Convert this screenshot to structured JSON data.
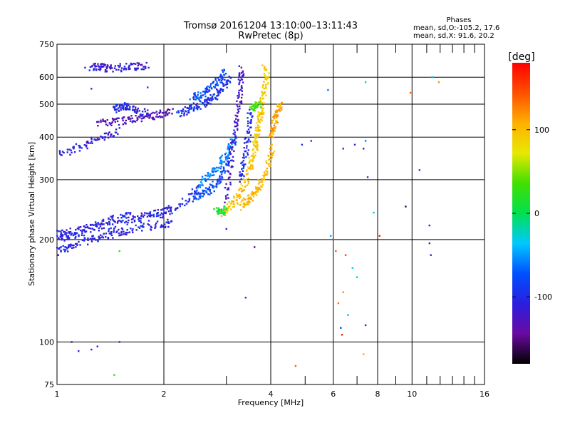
{
  "chart_data": {
    "type": "scatter",
    "title": "Tromsø 20161204 13:10:00–13:11:43",
    "subtitle": "RwPretec (8p)",
    "stats": {
      "heading": "Phases",
      "line1": "mean, sd,O:-105.2, 17.6",
      "line2": "mean, sd,X:  91.6, 20.2"
    },
    "xlabel": "Frequency [MHz]",
    "ylabel": "Stationary phase Virtual Height [km]",
    "x_scale": "log",
    "y_scale": "log",
    "xlim": [
      1,
      16
    ],
    "ylim": [
      75,
      750
    ],
    "x_ticks": [
      1,
      2,
      4,
      6,
      8,
      10,
      16
    ],
    "x_minor_ticks": [
      3,
      5,
      7,
      9,
      11,
      12,
      13,
      14,
      15
    ],
    "y_ticks": [
      75,
      100,
      200,
      300,
      400,
      500,
      600,
      750
    ],
    "grid": true,
    "colorbar": {
      "label": "[deg]",
      "range": [
        -180,
        180
      ],
      "ticks": [
        -100,
        0,
        100
      ],
      "colors": [
        "#000000",
        "#6a0aa0",
        "#2a1ee0",
        "#0050ff",
        "#00c8ff",
        "#00e050",
        "#40e000",
        "#e8e800",
        "#ffb000",
        "#ff5000",
        "#ff0000"
      ]
    },
    "traces": [
      {
        "name": "",
        "phase": -110,
        "points": [
          [
            1.0,
            210
          ],
          [
            1.05,
            208
          ],
          [
            1.1,
            210
          ],
          [
            1.2,
            215
          ],
          [
            1.3,
            220
          ],
          [
            1.4,
            228
          ],
          [
            1.5,
            232
          ],
          [
            1.6,
            235
          ],
          [
            1.8,
            238
          ],
          [
            2.0,
            242
          ],
          [
            2.1,
            248
          ]
        ]
      },
      {
        "name": "",
        "phase": -105,
        "points": [
          [
            1.0,
            183
          ],
          [
            1.05,
            188
          ],
          [
            1.1,
            192
          ],
          [
            1.2,
            198
          ],
          [
            1.3,
            202
          ],
          [
            1.4,
            206
          ],
          [
            1.5,
            210
          ],
          [
            1.6,
            213
          ],
          [
            1.8,
            218
          ],
          [
            2.0,
            222
          ],
          [
            2.1,
            225
          ]
        ]
      },
      {
        "name": "",
        "phase": -100,
        "points": [
          [
            1.0,
            200
          ],
          [
            1.1,
            205
          ],
          [
            1.2,
            212
          ],
          [
            1.4,
            220
          ],
          [
            1.6,
            226
          ],
          [
            1.8,
            232
          ],
          [
            2.0,
            238
          ],
          [
            2.2,
            250
          ],
          [
            2.4,
            270
          ],
          [
            2.5,
            285
          ]
        ]
      },
      {
        "name": "",
        "phase": -80,
        "points": [
          [
            2.4,
            265
          ],
          [
            2.5,
            270
          ],
          [
            2.6,
            275
          ],
          [
            2.7,
            280
          ],
          [
            2.8,
            290
          ],
          [
            2.9,
            305
          ],
          [
            3.0,
            330
          ],
          [
            3.05,
            350
          ]
        ]
      },
      {
        "name": "",
        "phase": -60,
        "points": [
          [
            2.5,
            290
          ],
          [
            2.6,
            300
          ],
          [
            2.7,
            310
          ],
          [
            2.8,
            320
          ],
          [
            2.9,
            340
          ],
          [
            3.0,
            360
          ],
          [
            3.1,
            380
          ],
          [
            3.2,
            400
          ]
        ]
      },
      {
        "name": "",
        "phase": -120,
        "points": [
          [
            3.0,
            260
          ],
          [
            3.05,
            300
          ],
          [
            3.1,
            350
          ],
          [
            3.15,
            400
          ],
          [
            3.2,
            450
          ],
          [
            3.25,
            500
          ],
          [
            3.3,
            550
          ],
          [
            3.3,
            600
          ],
          [
            3.3,
            640
          ]
        ]
      },
      {
        "name": "",
        "phase": -100,
        "points": [
          [
            3.3,
            300
          ],
          [
            3.35,
            330
          ],
          [
            3.4,
            360
          ],
          [
            3.45,
            400
          ],
          [
            3.5,
            440
          ],
          [
            3.5,
            480
          ]
        ]
      },
      {
        "name": "",
        "phase": -110,
        "points": [
          [
            1.0,
            355
          ],
          [
            1.1,
            365
          ],
          [
            1.2,
            380
          ],
          [
            1.3,
            395
          ],
          [
            1.4,
            405
          ],
          [
            1.5,
            418
          ]
        ]
      },
      {
        "name": "",
        "phase": -130,
        "points": [
          [
            1.3,
            440
          ],
          [
            1.4,
            443
          ],
          [
            1.5,
            446
          ],
          [
            1.6,
            450
          ],
          [
            1.7,
            455
          ],
          [
            1.8,
            460
          ],
          [
            1.9,
            465
          ],
          [
            2.0,
            470
          ],
          [
            2.1,
            478
          ]
        ]
      },
      {
        "name": "",
        "phase": -105,
        "points": [
          [
            1.45,
            480
          ],
          [
            1.5,
            490
          ],
          [
            1.55,
            495
          ],
          [
            1.6,
            488
          ],
          [
            1.7,
            478
          ],
          [
            1.8,
            470
          ]
        ]
      },
      {
        "name": "",
        "phase": -95,
        "points": [
          [
            2.2,
            470
          ],
          [
            2.3,
            478
          ],
          [
            2.4,
            488
          ],
          [
            2.5,
            495
          ],
          [
            2.6,
            505
          ],
          [
            2.7,
            515
          ],
          [
            2.8,
            530
          ],
          [
            2.9,
            550
          ],
          [
            3.0,
            575
          ],
          [
            3.05,
            600
          ]
        ]
      },
      {
        "name": "",
        "phase": -80,
        "points": [
          [
            2.4,
            520
          ],
          [
            2.5,
            530
          ],
          [
            2.6,
            540
          ],
          [
            2.7,
            555
          ],
          [
            2.8,
            575
          ],
          [
            2.9,
            600
          ],
          [
            3.0,
            620
          ]
        ]
      },
      {
        "name": "",
        "phase": -115,
        "points": [
          [
            1.25,
            640
          ],
          [
            1.3,
            645
          ],
          [
            1.35,
            640
          ],
          [
            1.4,
            638
          ],
          [
            1.5,
            640
          ],
          [
            1.6,
            642
          ],
          [
            1.7,
            645
          ],
          [
            1.8,
            650
          ]
        ]
      },
      {
        "name": "",
        "phase": 95,
        "points": [
          [
            2.9,
            240
          ],
          [
            3.0,
            245
          ],
          [
            3.1,
            252
          ],
          [
            3.2,
            262
          ],
          [
            3.3,
            275
          ],
          [
            3.4,
            295
          ],
          [
            3.5,
            325
          ],
          [
            3.6,
            360
          ],
          [
            3.65,
            400
          ],
          [
            3.7,
            440
          ],
          [
            3.75,
            480
          ]
        ]
      },
      {
        "name": "",
        "phase": 100,
        "points": [
          [
            3.3,
            250
          ],
          [
            3.4,
            258
          ],
          [
            3.5,
            265
          ],
          [
            3.6,
            275
          ],
          [
            3.7,
            285
          ],
          [
            3.8,
            300
          ],
          [
            3.9,
            320
          ],
          [
            4.0,
            350
          ],
          [
            4.05,
            380
          ]
        ]
      },
      {
        "name": "",
        "phase": 90,
        "points": [
          [
            3.5,
            330
          ],
          [
            3.6,
            370
          ],
          [
            3.7,
            420
          ],
          [
            3.75,
            470
          ],
          [
            3.8,
            520
          ],
          [
            3.85,
            560
          ],
          [
            3.9,
            600
          ],
          [
            3.85,
            640
          ]
        ]
      },
      {
        "name": "",
        "phase": 110,
        "points": [
          [
            4.0,
            400
          ],
          [
            4.05,
            420
          ],
          [
            4.1,
            440
          ],
          [
            4.15,
            460
          ],
          [
            4.2,
            480
          ],
          [
            4.25,
            500
          ]
        ]
      },
      {
        "name": "",
        "phase": 35,
        "points": [
          [
            3.55,
            480
          ],
          [
            3.6,
            490
          ],
          [
            3.65,
            495
          ],
          [
            3.7,
            500
          ]
        ]
      },
      {
        "name": "",
        "phase": 10,
        "points": [
          [
            2.8,
            245
          ],
          [
            2.9,
            242
          ],
          [
            3.0,
            245
          ]
        ]
      }
    ],
    "scattered_points": [
      {
        "x": 1.1,
        "y": 100,
        "phase": -130
      },
      {
        "x": 1.15,
        "y": 94,
        "phase": -100
      },
      {
        "x": 1.25,
        "y": 95,
        "phase": -100
      },
      {
        "x": 1.3,
        "y": 97,
        "phase": -110
      },
      {
        "x": 1.5,
        "y": 100,
        "phase": -120
      },
      {
        "x": 1.45,
        "y": 80,
        "phase": 20
      },
      {
        "x": 1.5,
        "y": 185,
        "phase": 30
      },
      {
        "x": 1.8,
        "y": 560,
        "phase": -90
      },
      {
        "x": 1.2,
        "y": 640,
        "phase": -110
      },
      {
        "x": 1.25,
        "y": 555,
        "phase": -100
      },
      {
        "x": 3.4,
        "y": 135,
        "phase": -100
      },
      {
        "x": 3.6,
        "y": 190,
        "phase": -150
      },
      {
        "x": 3.0,
        "y": 215,
        "phase": -110
      },
      {
        "x": 4.7,
        "y": 85,
        "phase": 140
      },
      {
        "x": 5.8,
        "y": 550,
        "phase": -60
      },
      {
        "x": 5.9,
        "y": 205,
        "phase": -50
      },
      {
        "x": 6.0,
        "y": 200,
        "phase": 160
      },
      {
        "x": 6.1,
        "y": 185,
        "phase": 140
      },
      {
        "x": 6.2,
        "y": 130,
        "phase": 130
      },
      {
        "x": 6.3,
        "y": 110,
        "phase": -80
      },
      {
        "x": 6.35,
        "y": 105,
        "phase": 170
      },
      {
        "x": 6.4,
        "y": 140,
        "phase": 120
      },
      {
        "x": 6.5,
        "y": 180,
        "phase": 150
      },
      {
        "x": 6.6,
        "y": 120,
        "phase": -40
      },
      {
        "x": 6.8,
        "y": 165,
        "phase": -30
      },
      {
        "x": 7.0,
        "y": 155,
        "phase": -20
      },
      {
        "x": 7.4,
        "y": 580,
        "phase": -20
      },
      {
        "x": 7.3,
        "y": 370,
        "phase": -140
      },
      {
        "x": 7.4,
        "y": 112,
        "phase": -110
      },
      {
        "x": 7.3,
        "y": 92,
        "phase": 110
      },
      {
        "x": 7.5,
        "y": 305,
        "phase": -90
      },
      {
        "x": 7.8,
        "y": 240,
        "phase": -30
      },
      {
        "x": 8.1,
        "y": 205,
        "phase": 170
      },
      {
        "x": 9.6,
        "y": 250,
        "phase": -160
      },
      {
        "x": 9.9,
        "y": 540,
        "phase": 140
      },
      {
        "x": 10.5,
        "y": 320,
        "phase": -100
      },
      {
        "x": 11.2,
        "y": 220,
        "phase": -120
      },
      {
        "x": 11.2,
        "y": 195,
        "phase": -140
      },
      {
        "x": 11.3,
        "y": 180,
        "phase": -120
      },
      {
        "x": 11.4,
        "y": 600,
        "phase": -40
      },
      {
        "x": 11.9,
        "y": 580,
        "phase": 120
      },
      {
        "x": 6.9,
        "y": 380,
        "phase": -120
      },
      {
        "x": 7.4,
        "y": 390,
        "phase": -60
      },
      {
        "x": 4.9,
        "y": 380,
        "phase": -100
      },
      {
        "x": 6.4,
        "y": 370,
        "phase": -100
      },
      {
        "x": 5.2,
        "y": 390,
        "phase": -80
      }
    ]
  }
}
